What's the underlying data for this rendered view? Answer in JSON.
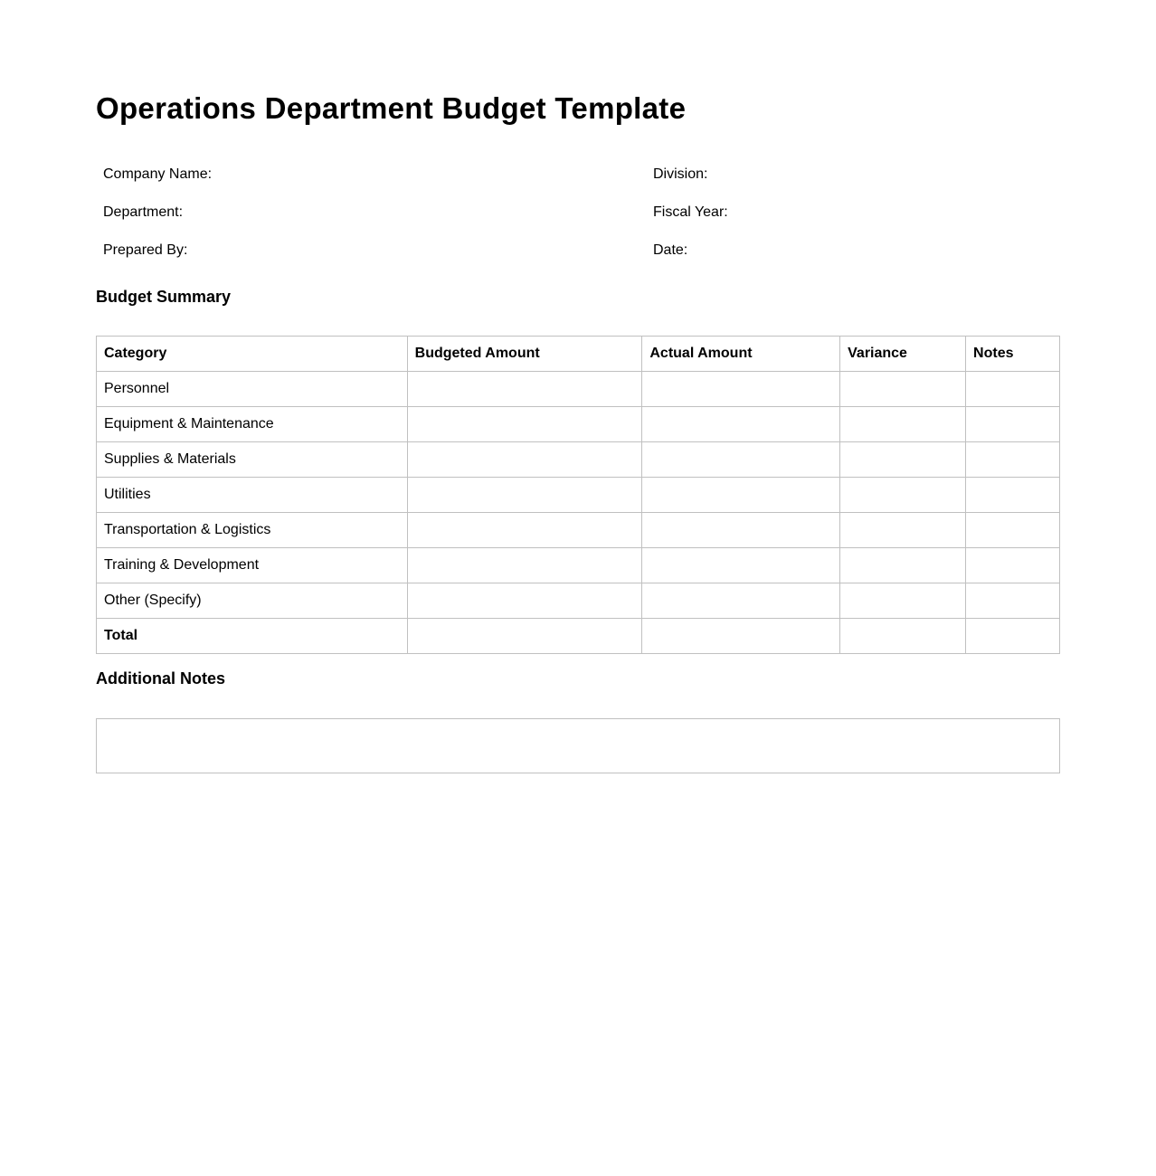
{
  "title": "Operations Department Budget Template",
  "info": {
    "left": [
      "Company Name:",
      "Department:",
      "Prepared By:"
    ],
    "right": [
      "Division:",
      "Fiscal Year:",
      "Date:"
    ]
  },
  "budget_summary": {
    "heading": "Budget Summary",
    "columns": [
      "Category",
      "Budgeted Amount",
      "Actual Amount",
      "Variance",
      "Notes"
    ],
    "rows": [
      "Personnel",
      "Equipment & Maintenance",
      "Supplies & Materials",
      "Utilities",
      "Transportation & Logistics",
      "Training & Development",
      "Other (Specify)"
    ],
    "total_label": "Total"
  },
  "additional_notes": {
    "heading": "Additional Notes",
    "value": ""
  }
}
